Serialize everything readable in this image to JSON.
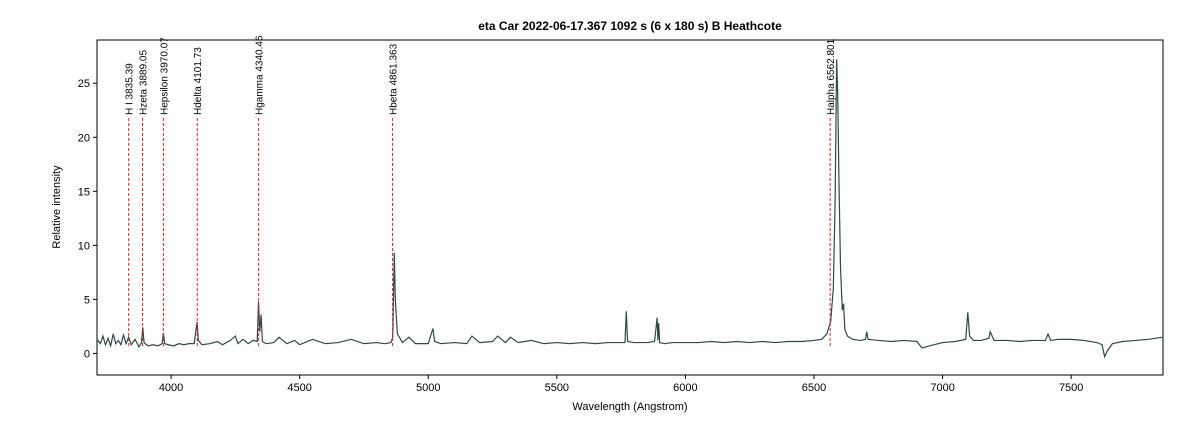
{
  "chart_data": {
    "type": "line",
    "title": "eta Car  2022-06-17.367  1092 s (6 x 180 s)  B Heathcote",
    "x_label": "Wavelength (Angstrom)",
    "y_label": "Relative intensity",
    "color": "#2e4a48",
    "xlim": [
      3712,
      7857
    ],
    "ylim": [
      -2,
      29
    ],
    "xticks": [
      4000,
      4500,
      5000,
      5500,
      6000,
      6500,
      7000,
      7500
    ],
    "yticks": [
      0,
      5,
      10,
      15,
      20,
      25
    ],
    "x": [
      3712,
      3725,
      3735,
      3745,
      3755,
      3765,
      3775,
      3785,
      3795,
      3805,
      3815,
      3825,
      3835,
      3845,
      3860,
      3875,
      3885,
      3890,
      3895,
      3910,
      3930,
      3950,
      3965,
      3970,
      3975,
      3990,
      4010,
      4030,
      4050,
      4070,
      4090,
      4101,
      4106,
      4120,
      4150,
      4180,
      4200,
      4230,
      4250,
      4260,
      4280,
      4300,
      4320,
      4335,
      4340,
      4345,
      4350,
      4355,
      4370,
      4400,
      4420,
      4450,
      4480,
      4500,
      4550,
      4600,
      4650,
      4700,
      4750,
      4800,
      4830,
      4855,
      4862,
      4868,
      4872,
      4880,
      4900,
      4925,
      4950,
      5000,
      5018,
      5025,
      5050,
      5100,
      5150,
      5170,
      5200,
      5250,
      5270,
      5300,
      5320,
      5350,
      5400,
      5450,
      5500,
      5550,
      5600,
      5650,
      5700,
      5750,
      5765,
      5770,
      5775,
      5800,
      5850,
      5880,
      5890,
      5893,
      5896,
      5900,
      5920,
      5950,
      6000,
      6050,
      6100,
      6150,
      6200,
      6250,
      6300,
      6350,
      6400,
      6450,
      6500,
      6530,
      6550,
      6565,
      6575,
      6582,
      6588,
      6592,
      6597,
      6603,
      6610,
      6615,
      6620,
      6630,
      6650,
      6680,
      6700,
      6705,
      6710,
      6750,
      6800,
      6850,
      6900,
      6920,
      6950,
      7000,
      7050,
      7090,
      7098,
      7105,
      7120,
      7150,
      7180,
      7185,
      7200,
      7250,
      7300,
      7350,
      7400,
      7410,
      7420,
      7450,
      7500,
      7550,
      7600,
      7620,
      7630,
      7640,
      7660,
      7700,
      7750,
      7800,
      7857
    ],
    "values": [
      1.3,
      0.9,
      1.6,
      0.8,
      1.4,
      0.7,
      1.8,
      0.9,
      1.2,
      0.8,
      1.7,
      0.9,
      1.5,
      0.8,
      1.3,
      0.6,
      1.0,
      2.4,
      1.0,
      0.7,
      0.8,
      0.7,
      0.9,
      1.9,
      0.9,
      0.8,
      0.7,
      0.9,
      0.8,
      0.9,
      0.9,
      2.9,
      1.2,
      0.8,
      0.9,
      1.1,
      0.8,
      1.2,
      1.6,
      0.9,
      1.3,
      0.9,
      1.2,
      1.1,
      4.8,
      2.0,
      3.6,
      1.1,
      0.9,
      1.0,
      1.5,
      0.9,
      1.2,
      0.8,
      1.3,
      0.9,
      1.0,
      1.3,
      0.9,
      1.0,
      0.9,
      1.0,
      1.5,
      9.3,
      5.0,
      1.8,
      1.0,
      1.5,
      0.9,
      0.9,
      2.3,
      1.1,
      0.9,
      1.0,
      0.9,
      1.6,
      1.0,
      1.1,
      1.6,
      1.0,
      1.5,
      1.0,
      1.2,
      0.9,
      1.0,
      0.9,
      1.0,
      0.9,
      1.0,
      1.0,
      1.0,
      3.9,
      1.1,
      1.0,
      1.0,
      1.1,
      3.3,
      1.2,
      2.8,
      1.0,
      0.9,
      1.0,
      1.0,
      1.0,
      1.1,
      1.0,
      1.1,
      1.0,
      1.1,
      1.0,
      1.1,
      1.1,
      1.2,
      1.3,
      1.8,
      3.0,
      6.0,
      14.0,
      27.2,
      24.0,
      16.0,
      8.0,
      4.0,
      4.6,
      2.2,
      1.6,
      1.3,
      1.2,
      1.3,
      2.0,
      1.3,
      1.2,
      1.1,
      1.2,
      1.1,
      0.5,
      0.7,
      1.0,
      1.1,
      1.3,
      3.8,
      1.6,
      1.2,
      1.2,
      1.4,
      2.0,
      1.2,
      1.2,
      1.1,
      1.2,
      1.2,
      1.8,
      1.2,
      1.3,
      1.3,
      1.2,
      1.0,
      0.8,
      -0.3,
      0.2,
      0.9,
      1.1,
      1.2,
      1.3,
      1.5
    ],
    "annotations": [
      {
        "text": "H I 3835.39",
        "x": 3835.39
      },
      {
        "text": "Hzeta 3889.05",
        "x": 3889.05
      },
      {
        "text": "Hepsilon 3970.07",
        "x": 3970.07
      },
      {
        "text": "Hdelta 4101.73",
        "x": 4101.73
      },
      {
        "text": "Hgamma 4340.46",
        "x": 4340.46
      },
      {
        "text": "Hbeta 4861.363",
        "x": 4861.363
      },
      {
        "text": "Halpha 6562.801",
        "x": 6562.801
      }
    ]
  }
}
